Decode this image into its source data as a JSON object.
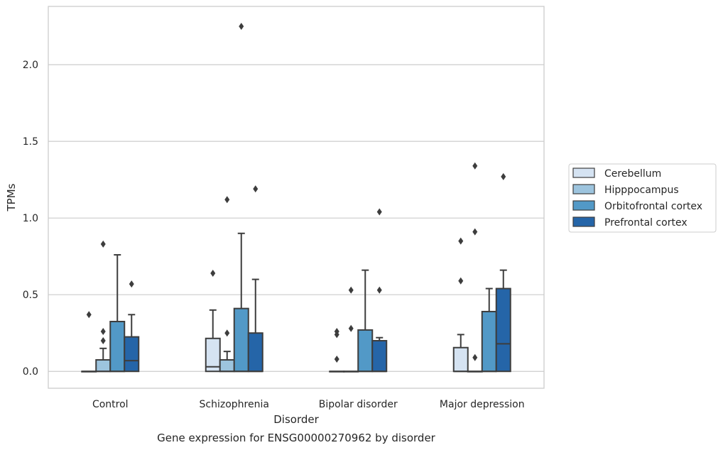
{
  "chart_data": {
    "type": "box",
    "title": "Gene expression for ENSG00000270962 by disorder",
    "xlabel": "Disorder",
    "ylabel": "TPMs",
    "ylim": [
      -0.11,
      2.38
    ],
    "yticks": [
      0.0,
      0.5,
      1.0,
      1.5,
      2.0
    ],
    "ytick_labels": [
      "0.0",
      "0.5",
      "1.0",
      "1.5",
      "2.0"
    ],
    "grid": "horizontal",
    "legend_position": "right",
    "categories": [
      "Control",
      "Schizophrenia",
      "Bipolar disorder",
      "Major depression"
    ],
    "series": [
      {
        "name": "Cerebellum",
        "color": "#d5e3f2",
        "boxes": [
          {
            "q1": 0.0,
            "median": 0.0,
            "q3": 0.0,
            "whisker_low": 0.0,
            "whisker_high": 0.0,
            "outliers": [
              0.37
            ]
          },
          {
            "q1": 0.0,
            "median": 0.03,
            "q3": 0.215,
            "whisker_low": 0.0,
            "whisker_high": 0.4,
            "outliers": [
              0.64
            ]
          },
          {
            "q1": 0.0,
            "median": 0.0,
            "q3": 0.0,
            "whisker_low": 0.0,
            "whisker_high": 0.0,
            "outliers": [
              0.08,
              0.24,
              0.26
            ]
          },
          {
            "q1": 0.0,
            "median": 0.0,
            "q3": 0.155,
            "whisker_low": 0.0,
            "whisker_high": 0.24,
            "outliers": [
              0.59,
              0.85
            ]
          }
        ]
      },
      {
        "name": "Hipppocampus",
        "color": "#9dc4de",
        "boxes": [
          {
            "q1": 0.0,
            "median": 0.0,
            "q3": 0.075,
            "whisker_low": 0.0,
            "whisker_high": 0.15,
            "outliers": [
              0.2,
              0.26,
              0.83
            ]
          },
          {
            "q1": 0.0,
            "median": 0.0,
            "q3": 0.075,
            "whisker_low": 0.0,
            "whisker_high": 0.13,
            "outliers": [
              0.25,
              1.12
            ]
          },
          {
            "q1": 0.0,
            "median": 0.0,
            "q3": 0.0,
            "whisker_low": 0.0,
            "whisker_high": 0.0,
            "outliers": [
              0.28,
              0.53
            ]
          },
          {
            "q1": 0.0,
            "median": 0.0,
            "q3": 0.0,
            "whisker_low": 0.0,
            "whisker_high": 0.0,
            "outliers": [
              0.09,
              0.91,
              1.34
            ]
          }
        ]
      },
      {
        "name": "Orbitofrontal cortex",
        "color": "#5299c7",
        "boxes": [
          {
            "q1": 0.0,
            "median": 0.0,
            "q3": 0.325,
            "whisker_low": 0.0,
            "whisker_high": 0.76,
            "outliers": []
          },
          {
            "q1": 0.0,
            "median": 0.0,
            "q3": 0.41,
            "whisker_low": 0.0,
            "whisker_high": 0.9,
            "outliers": [
              2.25
            ]
          },
          {
            "q1": 0.0,
            "median": 0.0,
            "q3": 0.27,
            "whisker_low": 0.0,
            "whisker_high": 0.66,
            "outliers": []
          },
          {
            "q1": 0.0,
            "median": 0.0,
            "q3": 0.39,
            "whisker_low": 0.0,
            "whisker_high": 0.54,
            "outliers": []
          }
        ]
      },
      {
        "name": "Prefrontal cortex",
        "color": "#2565a8",
        "boxes": [
          {
            "q1": 0.0,
            "median": 0.07,
            "q3": 0.225,
            "whisker_low": 0.0,
            "whisker_high": 0.37,
            "outliers": [
              0.57
            ]
          },
          {
            "q1": 0.0,
            "median": 0.0,
            "q3": 0.25,
            "whisker_low": 0.0,
            "whisker_high": 0.6,
            "outliers": [
              1.19
            ]
          },
          {
            "q1": 0.0,
            "median": 0.0,
            "q3": 0.2,
            "whisker_low": 0.0,
            "whisker_high": 0.22,
            "outliers": [
              0.53,
              1.04
            ]
          },
          {
            "q1": 0.0,
            "median": 0.18,
            "q3": 0.54,
            "whisker_low": 0.0,
            "whisker_high": 0.66,
            "outliers": [
              1.27
            ]
          }
        ]
      }
    ]
  }
}
